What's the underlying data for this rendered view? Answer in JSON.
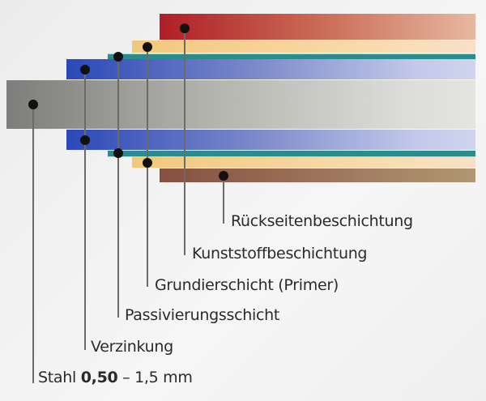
{
  "labels": {
    "rueckseite": "Rückseitenbeschichtung",
    "kunststoff": "Kunststoffbeschichtung",
    "grundier": "Grundierschicht (Primer)",
    "passivierung": "Passivierungsschicht",
    "verzinkung": "Verzinkung",
    "stahl": "Stahl",
    "stahl_thickness_min": "0,50",
    "stahl_thickness_rest": "– 1,5 mm"
  },
  "colors": {
    "steel": "#8a8a88",
    "zinc": "#3a55b8",
    "passivation": "#2e9090",
    "primer": "#f4cf88",
    "plastic_coating": "#b8262a",
    "back_coating": "#8a5a48"
  }
}
